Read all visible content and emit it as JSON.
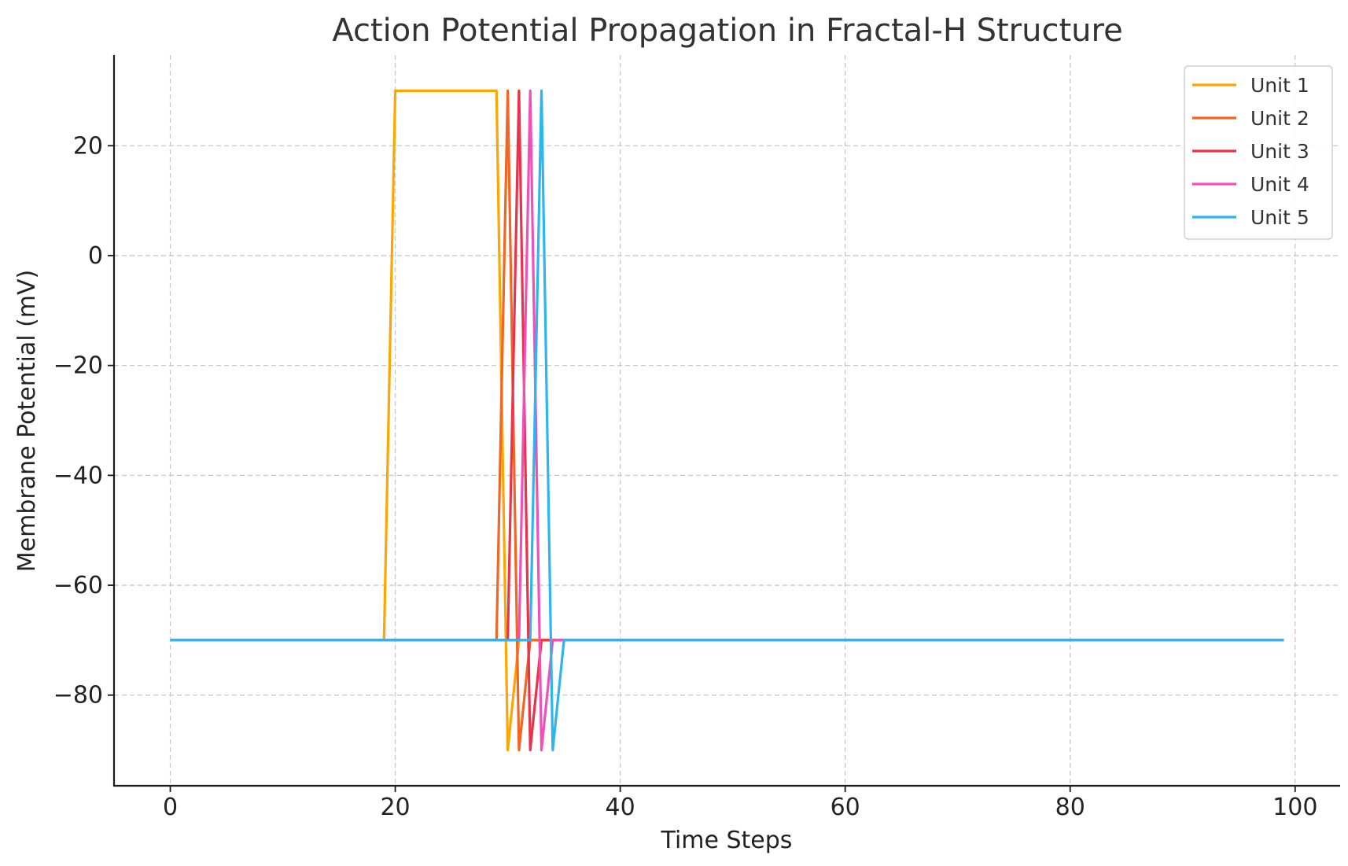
{
  "chart_data": {
    "type": "line",
    "title": "Action Potential Propagation in Fractal-H Structure",
    "xlabel": "Time Steps",
    "ylabel": "Membrane Potential (mV)",
    "xlim": [
      -5,
      104
    ],
    "ylim": [
      -96.5,
      36.5
    ],
    "xticks": [
      0,
      20,
      40,
      60,
      80,
      100
    ],
    "yticks": [
      20,
      0,
      -20,
      -40,
      -60,
      -80
    ],
    "xtick_labels": [
      "0",
      "20",
      "40",
      "60",
      "80",
      "100"
    ],
    "ytick_labels": [
      "20",
      "0",
      "−20",
      "−40",
      "−60",
      "−80"
    ],
    "grid": true,
    "legend_position": "top-right",
    "baseline": -70,
    "x_end": 99,
    "series": [
      {
        "name": "Unit 1",
        "color": "#FFA500",
        "spike": [
          [
            19,
            -70
          ],
          [
            20,
            30
          ],
          [
            29,
            30
          ],
          [
            30,
            -90
          ],
          [
            31,
            -70
          ]
        ]
      },
      {
        "name": "Unit 2",
        "color": "#F26522",
        "spike": [
          [
            29,
            -70
          ],
          [
            30,
            30
          ],
          [
            31,
            -90
          ],
          [
            32,
            -70
          ]
        ]
      },
      {
        "name": "Unit 3",
        "color": "#E8334A",
        "spike": [
          [
            30,
            -70
          ],
          [
            31,
            30
          ],
          [
            32,
            -90
          ],
          [
            33,
            -70
          ]
        ]
      },
      {
        "name": "Unit 4",
        "color": "#F050B8",
        "spike": [
          [
            31,
            -70
          ],
          [
            32,
            30
          ],
          [
            33,
            -90
          ],
          [
            34,
            -70
          ]
        ]
      },
      {
        "name": "Unit 5",
        "color": "#2CB5F0",
        "spike": [
          [
            32,
            -70
          ],
          [
            33,
            30
          ],
          [
            34,
            -90
          ],
          [
            35,
            -70
          ]
        ]
      }
    ]
  }
}
